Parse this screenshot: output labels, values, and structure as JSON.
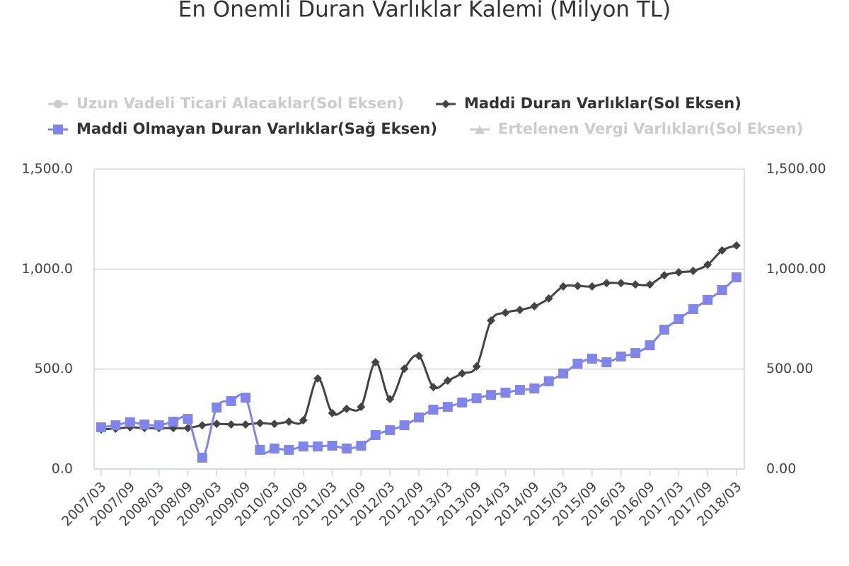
{
  "chart_data": {
    "type": "line",
    "title": "En Önemli Duran Varlıklar Kalemi (Milyon TL)",
    "categories": [
      "2007/03",
      null,
      "2007/09",
      null,
      "2008/03",
      null,
      "2008/09",
      null,
      "2009/03",
      null,
      "2009/09",
      null,
      "2010/03",
      null,
      "2010/09",
      null,
      "2011/03",
      null,
      "2011/09",
      null,
      "2012/03",
      null,
      "2012/09",
      null,
      "2013/03",
      null,
      "2013/09",
      null,
      "2014/03",
      null,
      "2014/09",
      null,
      "2015/03",
      null,
      "2015/09",
      null,
      "2016/03",
      null,
      "2016/09",
      null,
      "2017/03",
      null,
      "2017/09",
      null,
      "2018/03"
    ],
    "series": [
      {
        "name": "Uzun Vadeli Ticari Alacaklar(Sol Eksen)",
        "color": "#cccccc",
        "marker": "circle",
        "visible": false
      },
      {
        "name": "Maddi Duran Varlıklar(Sol Eksen)",
        "color": "#434348",
        "marker": "diamond",
        "visible": true,
        "values": [
          198,
          202,
          209,
          205,
          205,
          205,
          205,
          219,
          226,
          223,
          223,
          230,
          226,
          237,
          244,
          453,
          280,
          301,
          311,
          534,
          350,
          502,
          566,
          410,
          442,
          478,
          513,
          743,
          782,
          796,
          814,
          853,
          913,
          916,
          913,
          930,
          930,
          923,
          923,
          969,
          984,
          991,
          1022,
          1093,
          1118
        ]
      },
      {
        "name": "Maddi Olmayan Duran Varlıklar(Sağ Eksen)",
        "color": "#8085e9",
        "marker": "square",
        "visible": true,
        "axis": "y2",
        "values": [
          209,
          219,
          234,
          223,
          219,
          237,
          251,
          57,
          308,
          340,
          357,
          96,
          103,
          96,
          113,
          113,
          117,
          103,
          117,
          170,
          195,
          219,
          258,
          297,
          311,
          333,
          354,
          371,
          382,
          396,
          403,
          439,
          478,
          527,
          552,
          534,
          563,
          580,
          619,
          697,
          750,
          800,
          846,
          895,
          959
        ]
      },
      {
        "name": "Ertelenen Vergi Varlıkları(Sol Eksen)",
        "color": "#cccccc",
        "marker": "triangle",
        "visible": false
      }
    ],
    "ylim": [
      0,
      1500
    ],
    "yticks": [
      {
        "value": 0,
        "label": "0.0"
      },
      {
        "value": 500,
        "label": "500.0"
      },
      {
        "value": 1000,
        "label": "1,000.0"
      },
      {
        "value": 1500,
        "label": "1,500.0"
      }
    ],
    "y2lim": [
      0,
      1500
    ],
    "y2ticks": [
      {
        "value": 0,
        "label": "0.00"
      },
      {
        "value": 500,
        "label": "500.00"
      },
      {
        "value": 1000,
        "label": "1,000.00"
      },
      {
        "value": 1500,
        "label": "1,500.00"
      }
    ],
    "grid": true
  }
}
